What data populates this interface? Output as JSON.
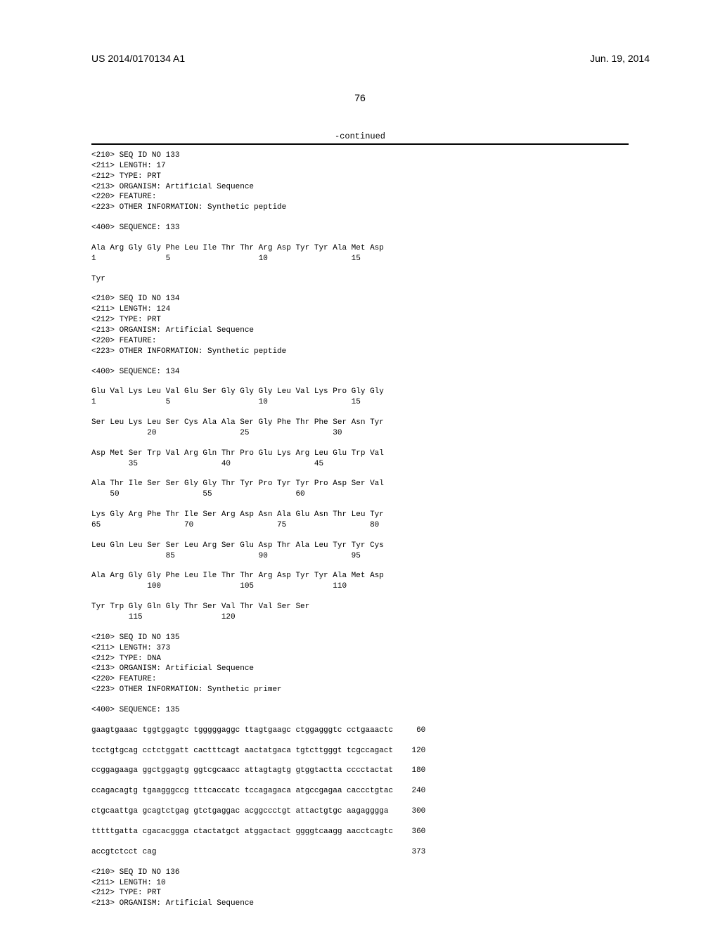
{
  "header": {
    "left": "US 2014/0170134 A1",
    "right": "Jun. 19, 2014"
  },
  "page_number": "76",
  "continued_label": "-continued",
  "blocks": [
    {
      "lines": [
        "<210> SEQ ID NO 133",
        "<211> LENGTH: 17",
        "<212> TYPE: PRT",
        "<213> ORGANISM: Artificial Sequence",
        "<220> FEATURE:",
        "<223> OTHER INFORMATION: Synthetic peptide"
      ]
    },
    {
      "lines": [
        "<400> SEQUENCE: 133"
      ]
    },
    {
      "lines": [
        "Ala Arg Gly Gly Phe Leu Ile Thr Thr Arg Asp Tyr Tyr Ala Met Asp",
        "1               5                   10                  15"
      ]
    },
    {
      "lines": [
        "Tyr"
      ]
    },
    {
      "lines": [
        "",
        "<210> SEQ ID NO 134",
        "<211> LENGTH: 124",
        "<212> TYPE: PRT",
        "<213> ORGANISM: Artificial Sequence",
        "<220> FEATURE:",
        "<223> OTHER INFORMATION: Synthetic peptide"
      ]
    },
    {
      "lines": [
        "<400> SEQUENCE: 134"
      ]
    },
    {
      "lines": [
        "Glu Val Lys Leu Val Glu Ser Gly Gly Gly Leu Val Lys Pro Gly Gly",
        "1               5                   10                  15"
      ]
    },
    {
      "lines": [
        "Ser Leu Lys Leu Ser Cys Ala Ala Ser Gly Phe Thr Phe Ser Asn Tyr",
        "            20                  25                  30"
      ]
    },
    {
      "lines": [
        "Asp Met Ser Trp Val Arg Gln Thr Pro Glu Lys Arg Leu Glu Trp Val",
        "        35                  40                  45"
      ]
    },
    {
      "lines": [
        "Ala Thr Ile Ser Ser Gly Gly Thr Tyr Pro Tyr Tyr Pro Asp Ser Val",
        "    50                  55                  60"
      ]
    },
    {
      "lines": [
        "Lys Gly Arg Phe Thr Ile Ser Arg Asp Asn Ala Glu Asn Thr Leu Tyr",
        "65                  70                  75                  80"
      ]
    },
    {
      "lines": [
        "Leu Gln Leu Ser Ser Leu Arg Ser Glu Asp Thr Ala Leu Tyr Tyr Cys",
        "                85                  90                  95"
      ]
    },
    {
      "lines": [
        "Ala Arg Gly Gly Phe Leu Ile Thr Thr Arg Asp Tyr Tyr Ala Met Asp",
        "            100                 105                 110"
      ]
    },
    {
      "lines": [
        "Tyr Trp Gly Gln Gly Thr Ser Val Thr Val Ser Ser",
        "        115                 120"
      ]
    },
    {
      "lines": [
        "",
        "<210> SEQ ID NO 135",
        "<211> LENGTH: 373",
        "<212> TYPE: DNA",
        "<213> ORGANISM: Artificial Sequence",
        "<220> FEATURE:",
        "<223> OTHER INFORMATION: Synthetic primer"
      ]
    },
    {
      "lines": [
        "<400> SEQUENCE: 135"
      ]
    },
    {
      "lines": [
        "gaagtgaaac tggtggagtc tgggggaggc ttagtgaagc ctggagggtc cctgaaactc     60"
      ]
    },
    {
      "lines": [
        "tcctgtgcag cctctggatt cactttcagt aactatgaca tgtcttgggt tcgccagact    120"
      ]
    },
    {
      "lines": [
        "ccggagaaga ggctggagtg ggtcgcaacc attagtagtg gtggtactta cccctactat    180"
      ]
    },
    {
      "lines": [
        "ccagacagtg tgaagggccg tttcaccatc tccagagaca atgccgagaa caccctgtac    240"
      ]
    },
    {
      "lines": [
        "ctgcaattga gcagtctgag gtctgaggac acggccctgt attactgtgc aagagggga     300"
      ]
    },
    {
      "lines": [
        "tttttgatta cgacacggga ctactatgct atggactact ggggtcaagg aacctcagtc    360"
      ]
    },
    {
      "lines": [
        "accgtctcct cag                                                       373"
      ]
    },
    {
      "lines": [
        "",
        "<210> SEQ ID NO 136",
        "<211> LENGTH: 10",
        "<212> TYPE: PRT",
        "<213> ORGANISM: Artificial Sequence"
      ]
    }
  ]
}
